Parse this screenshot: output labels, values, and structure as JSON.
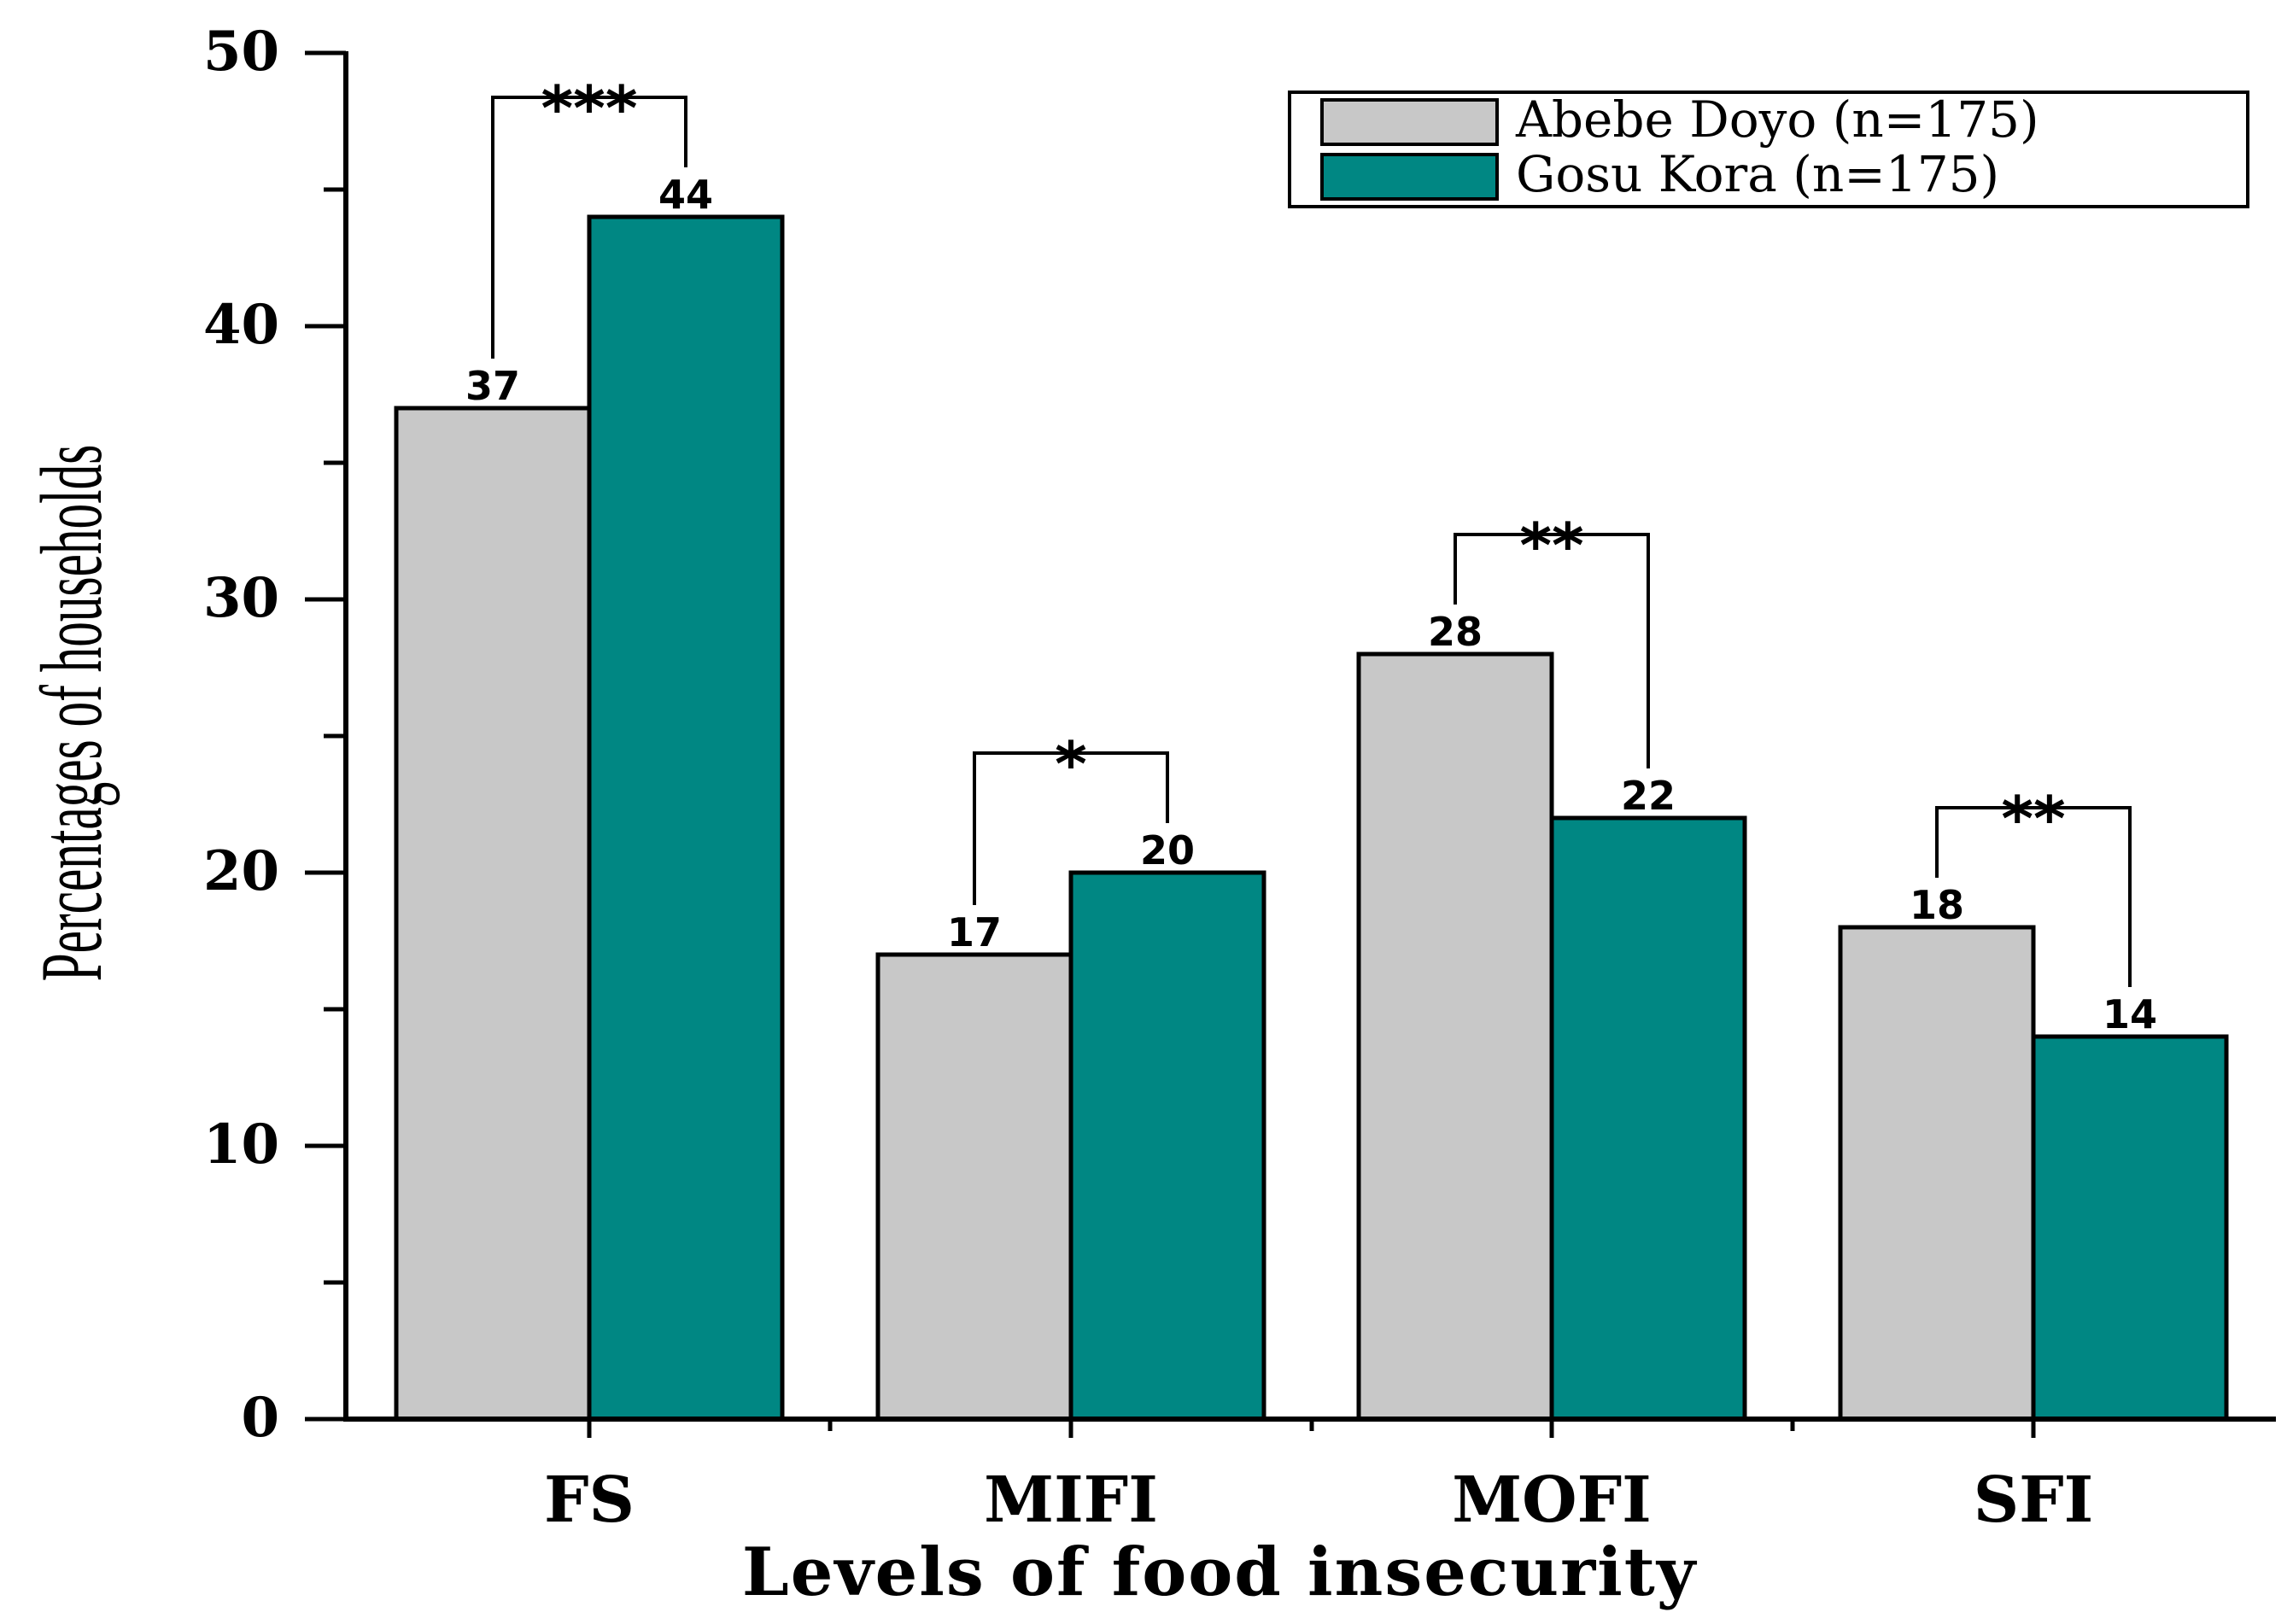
{
  "chart_data": {
    "type": "bar",
    "title": "",
    "xlabel": "Levels of food insecurity",
    "ylabel": "Percentages of households",
    "categories": [
      "FS",
      "MIFI",
      "MOFI",
      "SFI"
    ],
    "series": [
      {
        "name": "Abebe Doyo (n=175)",
        "color": "#c8c8c8",
        "values": [
          37,
          17,
          28,
          18
        ]
      },
      {
        "name": "Gosu Kora (n=175)",
        "color": "#008783",
        "values": [
          44,
          20,
          22,
          14
        ]
      }
    ],
    "ylim": [
      0,
      50
    ],
    "yticks": [
      0,
      10,
      20,
      30,
      40,
      50
    ],
    "yticks_minor": [
      5,
      15,
      25,
      35,
      45
    ],
    "legend_position": "top-right",
    "grid": false,
    "significance": [
      "***",
      "*",
      "**",
      "**"
    ]
  }
}
